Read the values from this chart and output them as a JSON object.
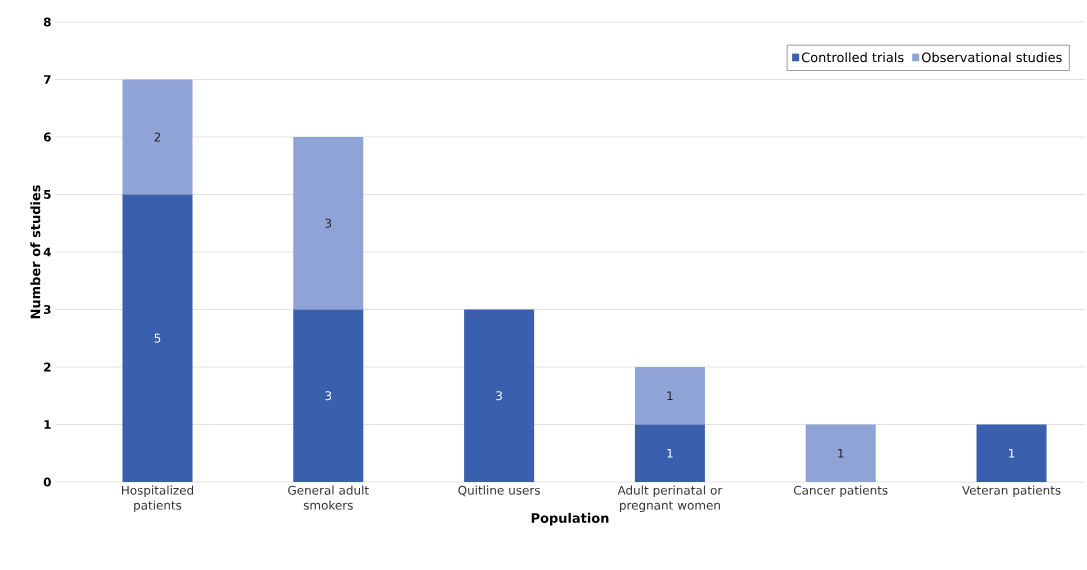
{
  "chart_data": {
    "type": "bar",
    "stacked": true,
    "xlabel": "Population",
    "ylabel": "Number of studies",
    "categories": [
      "Hospitalized patients",
      "General adult smokers",
      "Quitline users",
      "Adult perinatal or pregnant women",
      "Cancer patients",
      "Veteran patients"
    ],
    "series": [
      {
        "name": "Controlled trials",
        "color": "#3a5fad",
        "values": [
          5,
          3,
          3,
          1,
          0,
          1
        ],
        "value_labels": [
          "5",
          "3",
          "3",
          "1",
          null,
          "1"
        ]
      },
      {
        "name": "Observational studies",
        "color": "#8fa3d6",
        "values": [
          2,
          3,
          0,
          1,
          1,
          0
        ],
        "value_labels": [
          "2",
          "3",
          null,
          "1",
          "1",
          null
        ]
      }
    ],
    "ylim": [
      0,
      8
    ],
    "yticks": [
      0,
      1,
      2,
      3,
      4,
      5,
      6,
      7,
      8
    ],
    "grid": "y",
    "legend": "top right"
  }
}
